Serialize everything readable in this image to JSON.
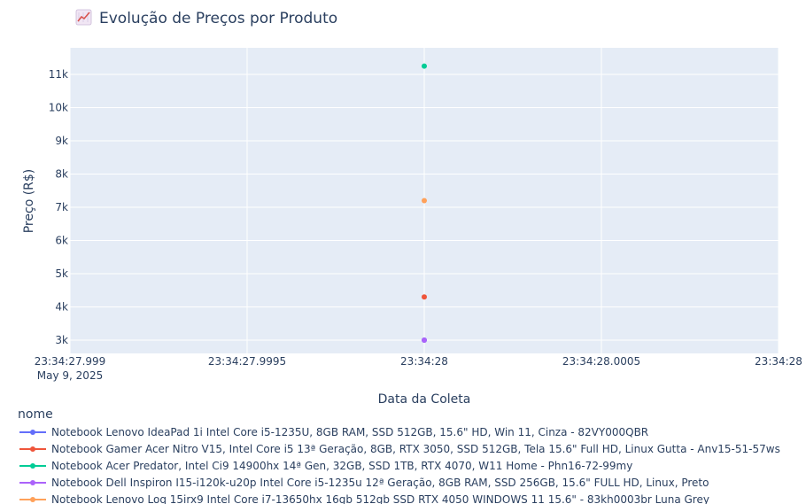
{
  "chart_data": {
    "type": "scatter",
    "title": "Evolução de Preços por Produto",
    "title_icon": "chart-increasing-icon",
    "xlabel": "Data da Coleta",
    "ylabel": "Preço (R$)",
    "xlim": [
      "23:34:27.999",
      "23:34:28"
    ],
    "x_ticks": [
      "23:34:27.999",
      "23:34:27.9995",
      "23:34:28",
      "23:34:28.0005",
      "23:34:28"
    ],
    "x_date_label": "May 9, 2025",
    "y_ticks": [
      "3k",
      "4k",
      "5k",
      "6k",
      "7k",
      "8k",
      "9k",
      "10k",
      "11k"
    ],
    "ylim": [
      2600,
      11800
    ],
    "grid": true,
    "plot_background": "#e5ecf6",
    "legend_title": "nome",
    "legend_position": "bottom-left",
    "series": [
      {
        "name": "Notebook Lenovo IdeaPad 1i Intel Core i5-1235U, 8GB RAM, SSD 512GB, 15.6\" HD, Win 11, Cinza - 82VY000QBR",
        "color": "#636efa",
        "x": [
          "2025-05-09 23:34:28"
        ],
        "y": [
          3000
        ]
      },
      {
        "name": "Notebook Gamer Acer Nitro V15, Intel Core i5 13ª Geração, 8GB, RTX 3050, SSD 512GB, Tela 15.6\" Full HD, Linux Gutta - Anv15-51-57ws",
        "color": "#ef553b",
        "x": [
          "2025-05-09 23:34:28"
        ],
        "y": [
          4300
        ]
      },
      {
        "name": "Notebook Acer Predator, Intel Ci9 14900hx 14ª Gen, 32GB, SSD 1TB, RTX 4070, W11 Home - Phn16-72-99my",
        "color": "#00cc96",
        "x": [
          "2025-05-09 23:34:28"
        ],
        "y": [
          11250
        ]
      },
      {
        "name": "Notebook Dell Inspiron I15-i120k-u20p Intel Core i5-1235u 12ª Geração, 8GB RAM, SSD 256GB, 15.6\" FULL HD, Linux, Preto",
        "color": "#ab63fa",
        "x": [
          "2025-05-09 23:34:28"
        ],
        "y": [
          3000
        ]
      },
      {
        "name": "Notebook Lenovo Loq 15irx9 Intel Core i7-13650hx 16gb 512gb SSD RTX 4050 WINDOWS 11 15.6\" - 83kh0003br Luna Grey",
        "color": "#ffa15a",
        "x": [
          "2025-05-09 23:34:28"
        ],
        "y": [
          7200
        ]
      }
    ]
  }
}
